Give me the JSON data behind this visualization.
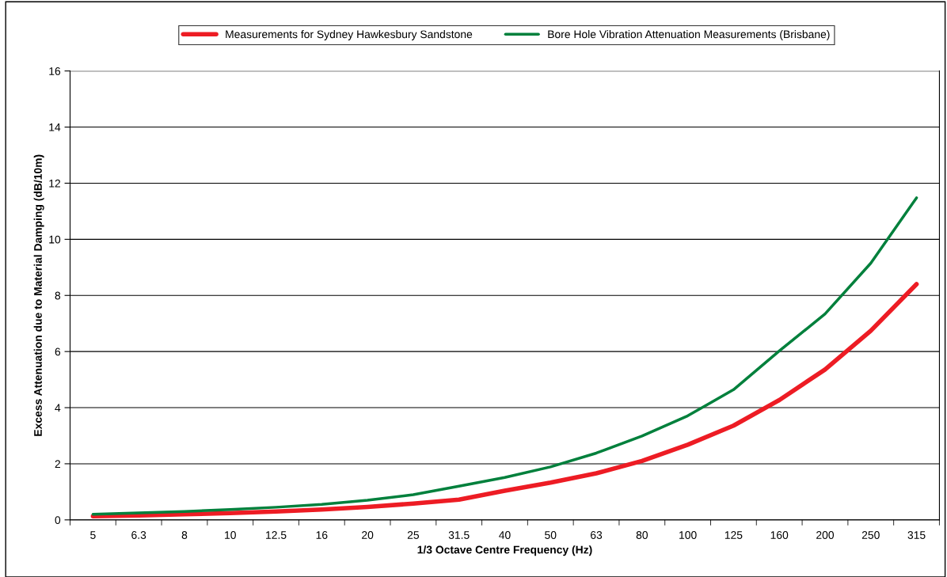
{
  "chart_data": {
    "type": "line",
    "xlabel": "1/3 Octave Centre Frequency (Hz)",
    "ylabel": "Excess Attenuation due to Material Damping (dB/10m)",
    "categories": [
      "5",
      "6.3",
      "8",
      "10",
      "12.5",
      "16",
      "20",
      "25",
      "31.5",
      "40",
      "50",
      "63",
      "80",
      "100",
      "125",
      "160",
      "200",
      "250",
      "315"
    ],
    "series": [
      {
        "name": "Measurements for Sydney Hawkesbury Sandstone",
        "color": "#ed1c24",
        "values": [
          0.13,
          0.16,
          0.2,
          0.24,
          0.3,
          0.37,
          0.46,
          0.58,
          0.72,
          1.04,
          1.33,
          1.66,
          2.1,
          2.68,
          3.36,
          4.27,
          5.36,
          6.74,
          8.4
        ]
      },
      {
        "name": "Bore Hole Vibration Attenuation Measurements (Brisbane)",
        "color": "#00803c",
        "values": [
          0.2,
          0.25,
          0.3,
          0.37,
          0.45,
          0.55,
          0.7,
          0.9,
          1.2,
          1.51,
          1.89,
          2.38,
          2.99,
          3.71,
          4.64,
          6.02,
          7.34,
          9.15,
          11.48
        ]
      }
    ],
    "ylim": [
      0,
      16
    ],
    "yticks": [
      0,
      2,
      4,
      6,
      8,
      10,
      12,
      14,
      16
    ],
    "grid": "y",
    "legend": "top",
    "marker": "none",
    "line_style": "solid"
  }
}
